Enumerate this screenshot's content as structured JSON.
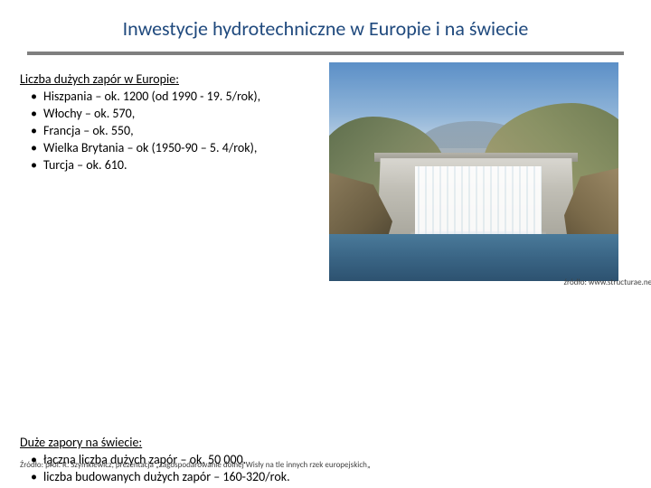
{
  "title": "Inwestycje hydrotechniczne w Europie i na świecie",
  "europe": {
    "heading": "Liczba dużych zapór w Europie:",
    "items": [
      "Hiszpania – ok. 1200 (od 1990 - 19. 5/rok),",
      "Włochy – ok. 570,",
      "Francja – ok. 550,",
      "Wielka Brytania – ok (1950-90 – 5. 4/rok),",
      "Turcja – ok. 610."
    ]
  },
  "world": {
    "heading": "Duże zapory na świecie:",
    "items": [
      "łączna liczba dużych zapór – ok. 50 000.",
      "liczba budowanych dużych zapór – 160-320/rok."
    ]
  },
  "image_caption": "źródło: www.structurae.net",
  "footer": "Źródło: prof. R. Szymkiewicz, prezentacja „Zagospodarowanie dolnej Wisły na tle innych rzek europejskich„",
  "colors": {
    "title": "#1f497d",
    "underline": "#7f7f7f",
    "text": "#000000",
    "caption": "#404040"
  }
}
